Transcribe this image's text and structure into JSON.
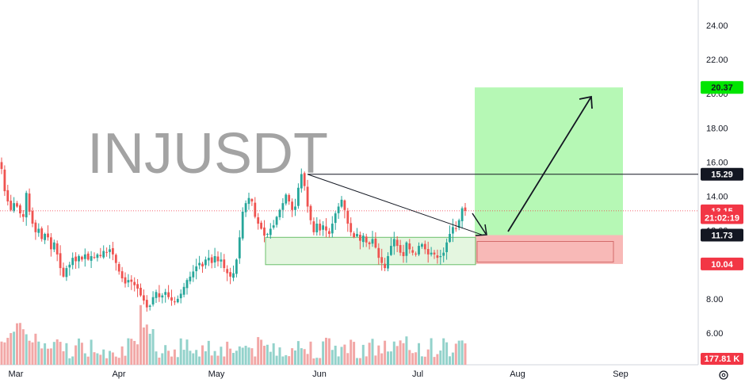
{
  "chart_data": {
    "type": "candlestick",
    "watermark": "INJUSDT",
    "y_axis": {
      "ticks": [
        "24.00",
        "22.00",
        "20.00",
        "18.00",
        "16.00",
        "14.00",
        "12.00",
        "10.00",
        "8.00",
        "6.00"
      ],
      "range": [
        4.6,
        25.3
      ]
    },
    "x_axis": {
      "ticks": [
        "Mar",
        "Apr",
        "May",
        "Jun",
        "Jul",
        "Aug",
        "Sep"
      ]
    },
    "price_badges": [
      {
        "label": "20.37",
        "value": 20.37,
        "bg": "#00e500",
        "fg": "#131722"
      },
      {
        "label": "15.29",
        "value": 15.29,
        "bg": "#131722",
        "fg": "#ffffff"
      },
      {
        "label": "13.15",
        "value": 13.15,
        "bg": "#f23645",
        "fg": "#ffffff"
      },
      {
        "label": "21:02:19",
        "value": 12.75,
        "bg": "#f23645",
        "fg": "#ffffff"
      },
      {
        "label": "11.73",
        "value": 11.73,
        "bg": "#131722",
        "fg": "#ffffff"
      },
      {
        "label": "10.04",
        "value": 10.04,
        "bg": "#f23645",
        "fg": "#ffffff"
      }
    ],
    "volume_badge": {
      "label": "177.81 K",
      "bg": "#f23645",
      "fg": "#ffffff"
    },
    "last_price": 13.15,
    "trade_zone": {
      "entry": 11.73,
      "target": 20.37,
      "stop": 10.04
    },
    "support_zone": {
      "top": 11.6,
      "bottom": 10.0
    },
    "resistance_level": 15.29,
    "colors": {
      "up": "#26a69a",
      "down": "#ef5350",
      "target_zone": "#b6f8b5",
      "stop_zone": "#f8b9b7",
      "support_zone": "#d9f2d3"
    },
    "candles_note": "daily OHLC, Feb–Jul",
    "closes": [
      15.6,
      14.3,
      13.7,
      13.2,
      13.6,
      13.4,
      13.0,
      12.8,
      14.2,
      13.1,
      12.4,
      11.9,
      12.1,
      11.5,
      11.8,
      11.6,
      10.9,
      11.3,
      10.6,
      9.8,
      9.3,
      9.8,
      10.0,
      10.4,
      10.2,
      10.5,
      10.3,
      10.6,
      10.3,
      10.5,
      10.4,
      10.6,
      10.5,
      10.8,
      10.7,
      10.9,
      10.6,
      10.1,
      9.6,
      9.2,
      8.9,
      9.1,
      9.0,
      8.8,
      8.6,
      8.2,
      7.9,
      7.5,
      7.6,
      8.1,
      8.4,
      8.1,
      8.2,
      8.4,
      8.1,
      7.9,
      7.8,
      8.0,
      8.3,
      8.7,
      9.1,
      9.3,
      9.6,
      9.9,
      10.1,
      9.9,
      10.3,
      10.4,
      10.1,
      10.5,
      10.2,
      10.3,
      9.8,
      9.5,
      9.3,
      9.5,
      10.3,
      11.6,
      13.1,
      13.6,
      13.9,
      13.7,
      12.8,
      12.4,
      12.1,
      11.7,
      11.8,
      12.1,
      12.3,
      12.8,
      13.2,
      13.6,
      14.1,
      13.7,
      13.2,
      13.4,
      14.5,
      15.3,
      14.6,
      13.4,
      12.6,
      11.9,
      12.4,
      12.0,
      12.3,
      12.0,
      11.8,
      12.4,
      13.0,
      13.4,
      13.8,
      13.2,
      12.4,
      11.9,
      11.6,
      11.8,
      11.4,
      11.7,
      11.3,
      11.2,
      11.5,
      11.0,
      10.4,
      10.1,
      9.8,
      10.5,
      11.1,
      11.5,
      11.1,
      10.7,
      10.5,
      11.3,
      10.9,
      10.7,
      10.6,
      11.1,
      11.2,
      10.9,
      10.6,
      10.7,
      10.6,
      10.4,
      10.5,
      10.7,
      11.3,
      11.8,
      12.2,
      12.1,
      12.6,
      13.3,
      13.15
    ]
  }
}
